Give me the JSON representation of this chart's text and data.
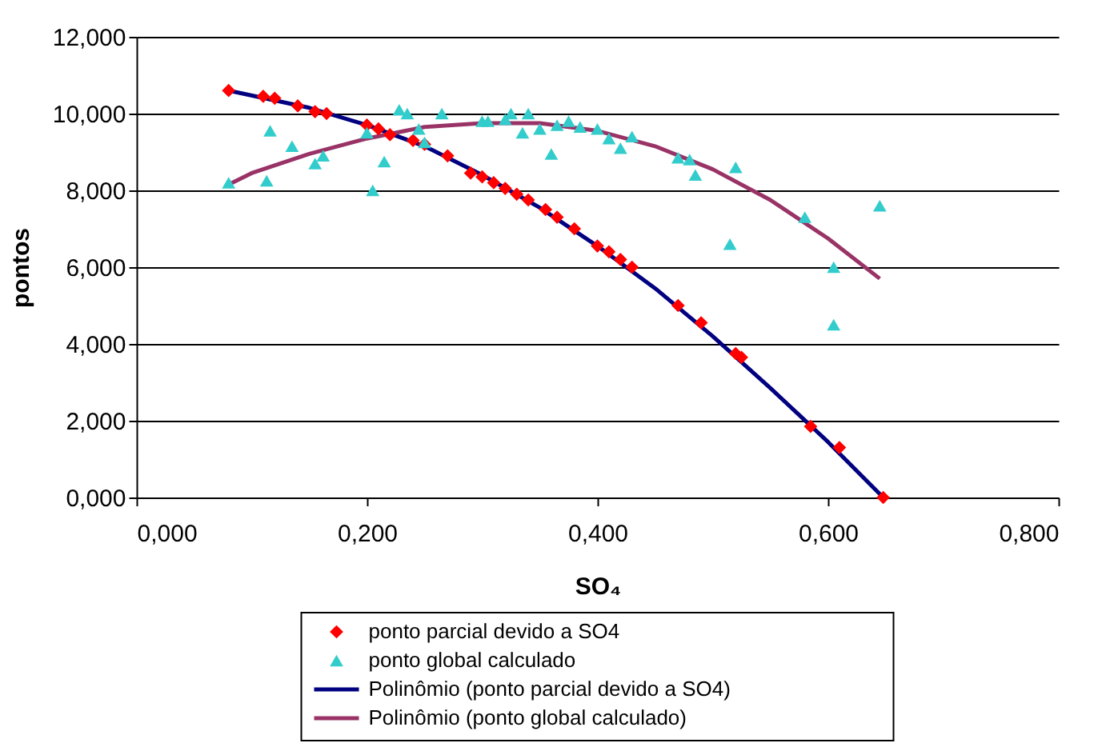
{
  "chart_data": {
    "type": "scatter",
    "xlabel": "SO₄",
    "ylabel": "pontos",
    "xlim": [
      0,
      0.8
    ],
    "xticks": [
      {
        "value": 0,
        "label": "0,000"
      },
      {
        "value": 0.2,
        "label": "0,200"
      },
      {
        "value": 0.4,
        "label": "0,400"
      },
      {
        "value": 0.6,
        "label": "0,600"
      },
      {
        "value": 0.8,
        "label": "0,800"
      }
    ],
    "ylim": [
      0,
      12
    ],
    "yticks": [
      {
        "value": 0,
        "label": "0,000"
      },
      {
        "value": 2,
        "label": "2,000"
      },
      {
        "value": 4,
        "label": "4,000"
      },
      {
        "value": 6,
        "label": "6,000"
      },
      {
        "value": 8,
        "label": "8,000"
      },
      {
        "value": 10,
        "label": "10,000"
      },
      {
        "value": 12,
        "label": "12,000"
      }
    ],
    "grid": "y",
    "legend": "bottom",
    "series": [
      {
        "name": "ponto parcial devido a SO4",
        "marker": "diamond",
        "color": "#ff0000",
        "x": [
          0.08,
          0.11,
          0.12,
          0.14,
          0.155,
          0.165,
          0.2,
          0.21,
          0.22,
          0.24,
          0.25,
          0.27,
          0.29,
          0.3,
          0.31,
          0.32,
          0.33,
          0.34,
          0.355,
          0.365,
          0.38,
          0.4,
          0.41,
          0.42,
          0.43,
          0.47,
          0.49,
          0.52,
          0.525,
          0.585,
          0.61,
          0.648
        ],
        "values": [
          10.6,
          10.45,
          10.4,
          10.2,
          10.05,
          10.0,
          9.7,
          9.6,
          9.45,
          9.3,
          9.2,
          8.9,
          8.45,
          8.35,
          8.2,
          8.05,
          7.9,
          7.75,
          7.5,
          7.3,
          7.0,
          6.55,
          6.4,
          6.2,
          6.0,
          5.0,
          4.55,
          3.75,
          3.65,
          1.85,
          1.3,
          0.0
        ]
      },
      {
        "name": "ponto global calculado",
        "marker": "triangle",
        "color": "#33cccc",
        "x": [
          0.08,
          0.113,
          0.116,
          0.135,
          0.155,
          0.162,
          0.2,
          0.205,
          0.215,
          0.228,
          0.235,
          0.245,
          0.25,
          0.265,
          0.3,
          0.305,
          0.32,
          0.325,
          0.335,
          0.34,
          0.35,
          0.36,
          0.365,
          0.375,
          0.385,
          0.4,
          0.41,
          0.42,
          0.43,
          0.47,
          0.48,
          0.485,
          0.52,
          0.515,
          0.58,
          0.605,
          0.605,
          0.645
        ],
        "values": [
          8.2,
          8.25,
          9.55,
          9.15,
          8.7,
          8.9,
          9.5,
          8.0,
          8.75,
          10.1,
          10.0,
          9.6,
          9.25,
          10.0,
          9.8,
          9.8,
          9.85,
          10.0,
          9.5,
          10.0,
          9.6,
          8.95,
          9.7,
          9.8,
          9.65,
          9.6,
          9.35,
          9.1,
          9.4,
          8.85,
          8.8,
          8.4,
          8.6,
          6.6,
          7.3,
          6.0,
          4.5,
          7.6
        ]
      },
      {
        "name": "Polinômio (ponto parcial devido a SO4)",
        "type": "line",
        "line_style": "solid",
        "color": "#000080",
        "x": [
          0.08,
          0.15,
          0.2,
          0.25,
          0.3,
          0.35,
          0.4,
          0.45,
          0.5,
          0.55,
          0.6,
          0.648
        ],
        "values": [
          10.6,
          10.15,
          9.7,
          9.15,
          8.4,
          7.55,
          6.55,
          5.45,
          4.2,
          2.85,
          1.45,
          0.0
        ]
      },
      {
        "name": "Polinômio (ponto global calculado)",
        "type": "line",
        "line_style": "solid",
        "color": "#993366",
        "x": [
          0.08,
          0.1,
          0.15,
          0.2,
          0.25,
          0.3,
          0.35,
          0.4,
          0.45,
          0.5,
          0.55,
          0.6,
          0.645
        ],
        "values": [
          8.15,
          8.45,
          8.95,
          9.35,
          9.65,
          9.75,
          9.75,
          9.55,
          9.15,
          8.55,
          7.75,
          6.75,
          5.7
        ]
      }
    ]
  }
}
